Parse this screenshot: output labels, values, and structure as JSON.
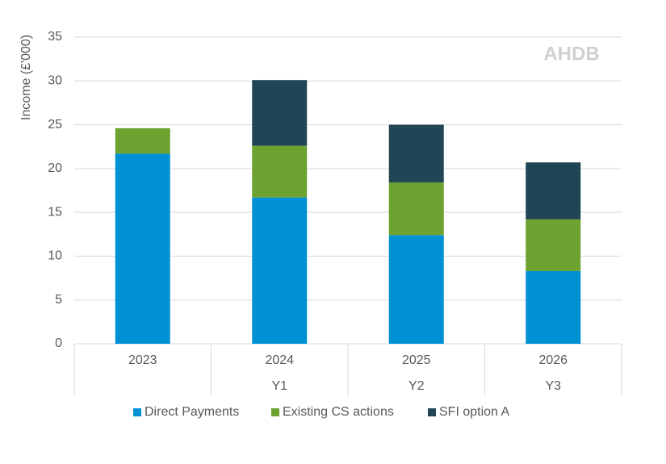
{
  "chart_data": {
    "type": "stacked-bar",
    "y_label": "Income (£'000)",
    "watermark": "AHDB",
    "categories": [
      "2023",
      "2024",
      "2025",
      "2026"
    ],
    "sublabels": [
      null,
      "Y1",
      "Y2",
      "Y3"
    ],
    "series": [
      {
        "name": "Direct Payments",
        "color": "#0090d4",
        "values": [
          21.7,
          16.7,
          12.4,
          8.3
        ]
      },
      {
        "name": "Existing CS actions",
        "color": "#6ca22f",
        "values": [
          2.9,
          5.9,
          6.0,
          5.9
        ]
      },
      {
        "name": "SFI option A",
        "color": "#204554",
        "values": [
          null,
          7.5,
          6.6,
          6.5
        ]
      }
    ],
    "ylim": [
      0,
      35
    ],
    "yticks": [
      0,
      5,
      10,
      15,
      20,
      25,
      30,
      35
    ],
    "grid": true
  }
}
